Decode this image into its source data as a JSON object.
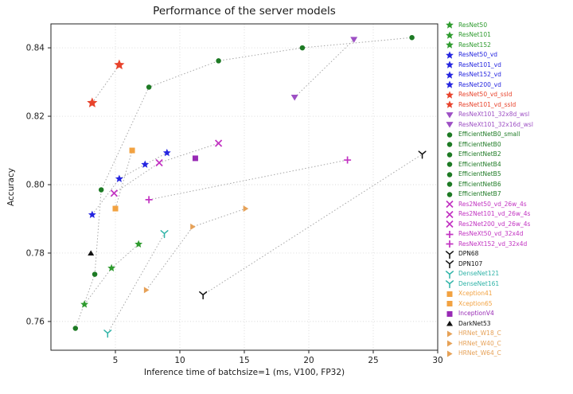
{
  "chart_data": {
    "type": "scatter",
    "title": "Performance of the server models",
    "xlabel": "Inference time of batchsize=1 (ms, V100, FP32)",
    "ylabel": "Accuracy",
    "xlim": [
      0,
      30
    ],
    "ylim": [
      0.7516,
      0.847
    ],
    "xticks": [
      5,
      10,
      15,
      20,
      25,
      30
    ],
    "yticks": [
      0.76,
      0.78,
      0.8,
      0.82,
      0.84
    ],
    "grid": true,
    "legend_position": "right-outside",
    "connector_style": "gray-dotted",
    "series": [
      {
        "family": "ResNet",
        "marker": "star",
        "color": "#2e9b2e",
        "size": 9,
        "points": [
          {
            "label": "ResNet50",
            "x": 2.6,
            "y": 0.765
          },
          {
            "label": "ResNet101",
            "x": 4.7,
            "y": 0.7756
          },
          {
            "label": "ResNet152",
            "x": 6.8,
            "y": 0.7826
          }
        ]
      },
      {
        "family": "ResNet_vd",
        "marker": "star",
        "color": "#2525e0",
        "size": 9,
        "points": [
          {
            "label": "ResNet50_vd",
            "x": 3.2,
            "y": 0.7912
          },
          {
            "label": "ResNet101_vd",
            "x": 5.3,
            "y": 0.8017
          },
          {
            "label": "ResNet152_vd",
            "x": 7.3,
            "y": 0.8059
          },
          {
            "label": "ResNet200_vd",
            "x": 9.0,
            "y": 0.8093
          }
        ]
      },
      {
        "family": "ResNet_vd_ssld",
        "marker": "star",
        "color": "#e8432c",
        "size": 12,
        "points": [
          {
            "label": "ResNet50_vd_ssld",
            "x": 3.2,
            "y": 0.8239
          },
          {
            "label": "ResNet101_vd_ssld",
            "x": 5.3,
            "y": 0.835
          }
        ]
      },
      {
        "family": "ResNeXt_wsl",
        "marker": "tri_down",
        "color": "#9d4fc4",
        "size": 9,
        "points": [
          {
            "label": "ResNeXt101_32x8d_wsl",
            "x": 18.9,
            "y": 0.8255
          },
          {
            "label": "ResNeXt101_32x16d_wsl",
            "x": 23.5,
            "y": 0.8424
          }
        ]
      },
      {
        "family": "EfficientNet",
        "marker": "circle",
        "color": "#1d7a24",
        "size": 6.5,
        "points": [
          {
            "label": "EfficientNetB0_small",
            "x": 1.9,
            "y": 0.758
          },
          {
            "label": "EfficientNetB0",
            "x": 3.4,
            "y": 0.7738
          },
          {
            "label": "EfficientNetB2",
            "x": 3.9,
            "y": 0.7985
          },
          {
            "label": "EfficientNetB4",
            "x": 7.6,
            "y": 0.8285
          },
          {
            "label": "EfficientNetB5",
            "x": 13.0,
            "y": 0.8362
          },
          {
            "label": "EfficientNetB6",
            "x": 19.5,
            "y": 0.84
          },
          {
            "label": "EfficientNetB7",
            "x": 28.0,
            "y": 0.843
          }
        ]
      },
      {
        "family": "Res2Net",
        "marker": "x",
        "color": "#c233c2",
        "size": 8,
        "points": [
          {
            "label": "Res2Net50_vd_26w_4s",
            "x": 4.9,
            "y": 0.7975
          },
          {
            "label": "Res2Net101_vd_26w_4s",
            "x": 8.4,
            "y": 0.8064
          },
          {
            "label": "Res2Net200_vd_26w_4s",
            "x": 13.0,
            "y": 0.8121
          }
        ]
      },
      {
        "family": "ResNeXt_vd",
        "marker": "plus",
        "color": "#c233c2",
        "size": 9,
        "points": [
          {
            "label": "ResNeXt50_vd_32x4d",
            "x": 7.6,
            "y": 0.7956
          },
          {
            "label": "ResNeXt152_vd_32x4d",
            "x": 23.0,
            "y": 0.8072
          }
        ]
      },
      {
        "family": "DPN",
        "marker": "triY",
        "color": "#111111",
        "size": 9,
        "points": [
          {
            "label": "DPN68",
            "x": 11.8,
            "y": 0.7678
          },
          {
            "label": "DPN107",
            "x": 28.8,
            "y": 0.8089
          }
        ]
      },
      {
        "family": "DenseNet",
        "marker": "triY",
        "color": "#2fb3a7",
        "size": 9,
        "points": [
          {
            "label": "DenseNet121",
            "x": 4.4,
            "y": 0.7566
          },
          {
            "label": "DenseNet161",
            "x": 8.8,
            "y": 0.7857
          }
        ]
      },
      {
        "family": "Xception",
        "marker": "square",
        "color": "#f2a241",
        "size": 7,
        "points": [
          {
            "label": "Xception41",
            "x": 5.0,
            "y": 0.793
          },
          {
            "label": "Xception65",
            "x": 6.3,
            "y": 0.81
          }
        ]
      },
      {
        "family": "Inception",
        "marker": "square",
        "color": "#982ab5",
        "size": 7,
        "points": [
          {
            "label": "InceptionV4",
            "x": 11.2,
            "y": 0.8077
          }
        ]
      },
      {
        "family": "DarkNet",
        "marker": "tri_up",
        "color": "#111111",
        "size": 8,
        "points": [
          {
            "label": "DarkNet53",
            "x": 3.1,
            "y": 0.78
          }
        ]
      },
      {
        "family": "HRNet",
        "marker": "tri_right",
        "color": "#e6a157",
        "size": 8,
        "points": [
          {
            "label": "HRNet_W18_C",
            "x": 7.4,
            "y": 0.7692
          },
          {
            "label": "HRNet_W40_C",
            "x": 11.0,
            "y": 0.7877
          },
          {
            "label": "HRNet_W64_C",
            "x": 15.1,
            "y": 0.793
          }
        ]
      }
    ]
  }
}
